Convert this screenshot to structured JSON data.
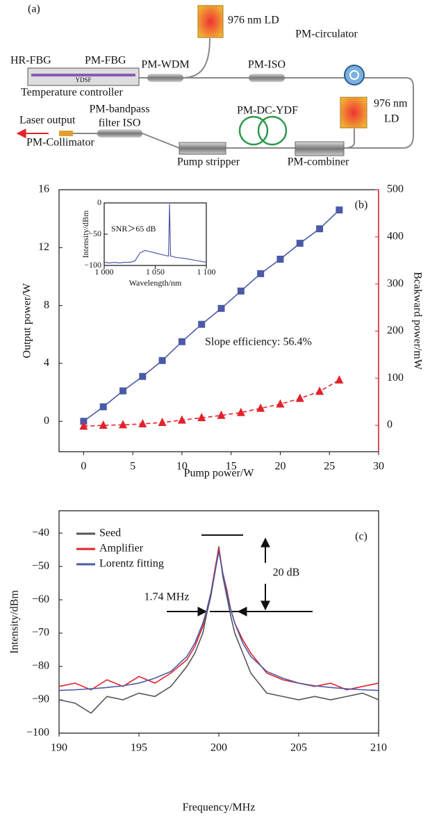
{
  "panel_a": {
    "label": "(a)",
    "components": [
      "976 nm LD",
      "PM-circulator",
      "HR-FBG",
      "PM-FBG",
      "PM-WDM",
      "PM-ISO",
      "YDSF",
      "Temperature controller",
      "976 nm",
      "LD",
      "PM-bandpass",
      "filter ISO",
      "PM-DC-YDF",
      "Laser output",
      "PM-Collimator",
      "Pump stripper",
      "PM-combiner"
    ]
  },
  "chart_data": [
    {
      "type": "line",
      "annotations": [
        "(b)",
        "Slope efficiency: 56.4%"
      ],
      "xlabel": "Pump power/W",
      "ylabel": "Output power/W",
      "y2label": "Bcakward power/mW",
      "y2color": "#e0232b",
      "x": [
        0,
        2,
        4,
        6,
        8,
        10,
        12,
        14,
        16,
        18,
        20,
        22,
        24,
        26
      ],
      "series": [
        {
          "color": "#4a5aa8",
          "marker": "square",
          "values": [
            0,
            1.0,
            2.1,
            3.1,
            4.2,
            5.5,
            6.7,
            7.8,
            9.0,
            10.2,
            11.2,
            12.3,
            13.3,
            14.6
          ]
        },
        {
          "color": "#e0232b",
          "marker": "triangle",
          "linestyle": "dashed",
          "axis": "y2",
          "values": [
            -2,
            0,
            1,
            3,
            6,
            11,
            16,
            21,
            27,
            36,
            45,
            57,
            72,
            96
          ]
        }
      ],
      "xlim": [
        -2.5,
        30
      ],
      "xticks": [
        0,
        5,
        10,
        15,
        20,
        25,
        30
      ],
      "ylim": [
        -2.1,
        16
      ],
      "yticks": [
        0,
        4,
        8,
        12,
        16
      ],
      "y2lim": [
        -56,
        500
      ],
      "y2ticks": [
        0,
        100,
        200,
        300,
        400,
        500
      ]
    },
    {
      "type": "line",
      "annotations": [
        "SNR＞65 dB"
      ],
      "xlabel": "Wavelength/nm",
      "ylabel": "Intensity/dBm",
      "x": [
        1000,
        1005,
        1010,
        1015,
        1020,
        1025,
        1030,
        1035,
        1040,
        1045,
        1050,
        1055,
        1060,
        1063,
        1064,
        1065,
        1068,
        1070,
        1080,
        1090,
        1100
      ],
      "series": [
        {
          "color": "#4a5aa8",
          "values": [
            -95,
            -96,
            -95,
            -96,
            -95,
            -95,
            -93,
            -80,
            -76,
            -78,
            -80,
            -82,
            -84,
            -85,
            -2,
            -85,
            -86,
            -87,
            -89,
            -92,
            -95
          ]
        }
      ],
      "xlim": [
        1000,
        1100
      ],
      "xticks": [
        {
          "value": 1000,
          "label": "1 000"
        },
        {
          "value": 1050,
          "label": "1 050"
        },
        {
          "value": 1100,
          "label": "1 100"
        }
      ],
      "ylim": [
        -100,
        0
      ],
      "yticks": [
        0,
        {
          "value": -50,
          "label": "−50"
        },
        {
          "value": -100,
          "label": "−100"
        }
      ]
    },
    {
      "type": "line",
      "annotations": [
        "(c)",
        "20 dB",
        "1.74 MHz"
      ],
      "xlabel": "Frequency/MHz",
      "ylabel": "Intensity/dBm",
      "legend": "upper left",
      "x": [
        190,
        191,
        192,
        193,
        194,
        195,
        196,
        197,
        198,
        198.5,
        199,
        199.25,
        199.5,
        199.75,
        200,
        200.25,
        200.5,
        200.75,
        201,
        201.5,
        202,
        203,
        204,
        205,
        206,
        207,
        208,
        209,
        210
      ],
      "series": [
        {
          "name": "Seed",
          "color": "#555555",
          "values": [
            -90,
            -91,
            -94,
            -89,
            -90,
            -88,
            -89,
            -86,
            -80,
            -76,
            -70,
            -64,
            -59,
            -52,
            -44,
            -53,
            -59,
            -65,
            -70,
            -76,
            -82,
            -88,
            -89,
            -90,
            -89,
            -90,
            -89,
            -88,
            -90
          ]
        },
        {
          "name": "Amplifier",
          "color": "#e0232b",
          "values": [
            -86,
            -85,
            -87,
            -84,
            -86,
            -83,
            -85,
            -82,
            -78,
            -74,
            -68,
            -63,
            -58,
            -51,
            -44.5,
            -52,
            -57,
            -63,
            -67,
            -72,
            -76,
            -82,
            -84,
            -85,
            -86,
            -85,
            -87,
            -86,
            -85
          ]
        },
        {
          "name": "Lorentz fitting",
          "color": "#4a5aa8",
          "values": [
            -87.2,
            -87,
            -86.7,
            -86.3,
            -85.8,
            -85,
            -83.5,
            -81.5,
            -77,
            -73,
            -67,
            -63,
            -58,
            -52,
            -45.5,
            -52,
            -58,
            -63,
            -67,
            -73,
            -77,
            -81.5,
            -83.5,
            -85,
            -85.8,
            -86.3,
            -86.7,
            -87,
            -87.2
          ]
        }
      ],
      "xlim": [
        190,
        210
      ],
      "xticks": [
        190,
        195,
        200,
        205,
        210
      ],
      "ylim": [
        -100,
        -33.3
      ],
      "yticks": [
        {
          "value": -100,
          "label": "−100"
        },
        {
          "value": -90,
          "label": "−90"
        },
        {
          "value": -80,
          "label": "−80"
        },
        {
          "value": -70,
          "label": "−70"
        },
        {
          "value": -60,
          "label": "−60"
        },
        {
          "value": -50,
          "label": "−50"
        },
        {
          "value": -40,
          "label": "−40"
        }
      ]
    }
  ]
}
